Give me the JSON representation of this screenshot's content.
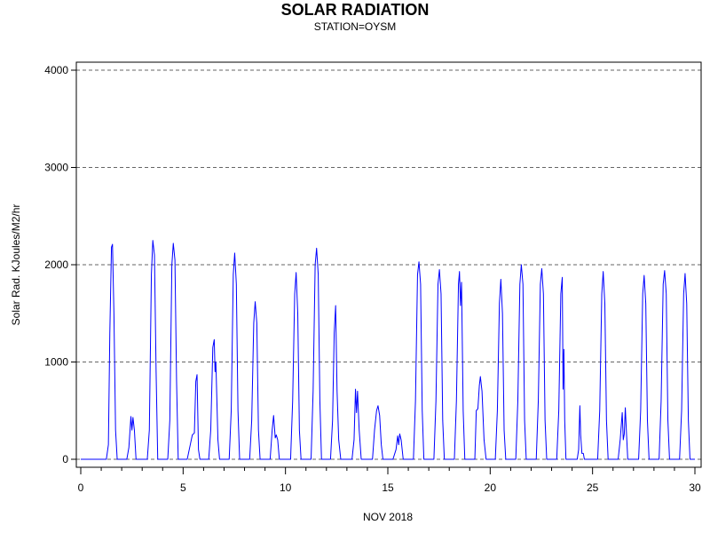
{
  "chart_data": {
    "type": "line",
    "title": "SOLAR RADIATION",
    "subtitle": "STATION=OYSM",
    "xlabel": "NOV 2018",
    "ylabel": "Solar Rad. KJoules/M2/hr",
    "xlim": [
      0,
      30
    ],
    "ylim": [
      0,
      4000
    ],
    "x_ticks": [
      0,
      5,
      10,
      15,
      20,
      25,
      30
    ],
    "y_ticks": [
      0,
      1000,
      2000,
      3000,
      4000
    ],
    "grid": "horizontal dashed",
    "line_color": "#0000ff",
    "series": [
      {
        "values": [
          [
            0,
            0
          ],
          [
            1.0,
            0
          ],
          [
            1.25,
            0
          ],
          [
            1.35,
            150
          ],
          [
            1.42,
            1300
          ],
          [
            1.5,
            2180
          ],
          [
            1.55,
            2210
          ],
          [
            1.62,
            1500
          ],
          [
            1.7,
            300
          ],
          [
            1.78,
            0
          ],
          [
            2.25,
            0
          ],
          [
            2.35,
            120
          ],
          [
            2.45,
            440
          ],
          [
            2.5,
            300
          ],
          [
            2.55,
            430
          ],
          [
            2.62,
            300
          ],
          [
            2.7,
            0
          ],
          [
            3.25,
            0
          ],
          [
            3.35,
            300
          ],
          [
            3.45,
            1900
          ],
          [
            3.52,
            2250
          ],
          [
            3.6,
            2100
          ],
          [
            3.68,
            900
          ],
          [
            3.76,
            0
          ],
          [
            4.25,
            0
          ],
          [
            4.35,
            400
          ],
          [
            4.45,
            2000
          ],
          [
            4.52,
            2220
          ],
          [
            4.6,
            2050
          ],
          [
            4.68,
            800
          ],
          [
            4.76,
            0
          ],
          [
            5.2,
            0
          ],
          [
            5.35,
            150
          ],
          [
            5.45,
            250
          ],
          [
            5.55,
            270
          ],
          [
            5.62,
            800
          ],
          [
            5.68,
            870
          ],
          [
            5.75,
            100
          ],
          [
            5.82,
            0
          ],
          [
            6.25,
            0
          ],
          [
            6.35,
            300
          ],
          [
            6.45,
            1150
          ],
          [
            6.52,
            1230
          ],
          [
            6.56,
            900
          ],
          [
            6.6,
            1000
          ],
          [
            6.7,
            200
          ],
          [
            6.78,
            0
          ],
          [
            7.25,
            0
          ],
          [
            7.35,
            500
          ],
          [
            7.45,
            1900
          ],
          [
            7.52,
            2120
          ],
          [
            7.6,
            1800
          ],
          [
            7.68,
            500
          ],
          [
            7.76,
            0
          ],
          [
            8.25,
            0
          ],
          [
            8.35,
            400
          ],
          [
            8.45,
            1400
          ],
          [
            8.52,
            1620
          ],
          [
            8.6,
            1400
          ],
          [
            8.68,
            300
          ],
          [
            8.76,
            0
          ],
          [
            9.25,
            0
          ],
          [
            9.35,
            300
          ],
          [
            9.42,
            450
          ],
          [
            9.5,
            220
          ],
          [
            9.55,
            250
          ],
          [
            9.62,
            200
          ],
          [
            9.7,
            0
          ],
          [
            10.25,
            0
          ],
          [
            10.35,
            600
          ],
          [
            10.45,
            1700
          ],
          [
            10.52,
            1920
          ],
          [
            10.6,
            1500
          ],
          [
            10.68,
            300
          ],
          [
            10.76,
            0
          ],
          [
            11.25,
            0
          ],
          [
            11.35,
            700
          ],
          [
            11.45,
            2000
          ],
          [
            11.52,
            2170
          ],
          [
            11.6,
            1900
          ],
          [
            11.68,
            600
          ],
          [
            11.76,
            0
          ],
          [
            12.2,
            0
          ],
          [
            12.3,
            400
          ],
          [
            12.38,
            1300
          ],
          [
            12.45,
            1580
          ],
          [
            12.52,
            700
          ],
          [
            12.6,
            200
          ],
          [
            12.7,
            0
          ],
          [
            13.25,
            0
          ],
          [
            13.35,
            200
          ],
          [
            13.42,
            720
          ],
          [
            13.47,
            480
          ],
          [
            13.52,
            700
          ],
          [
            13.6,
            300
          ],
          [
            13.7,
            0
          ],
          [
            14.25,
            0
          ],
          [
            14.35,
            300
          ],
          [
            14.45,
            500
          ],
          [
            14.52,
            550
          ],
          [
            14.6,
            450
          ],
          [
            14.68,
            150
          ],
          [
            14.76,
            0
          ],
          [
            15.25,
            0
          ],
          [
            15.4,
            100
          ],
          [
            15.48,
            240
          ],
          [
            15.53,
            150
          ],
          [
            15.58,
            260
          ],
          [
            15.65,
            200
          ],
          [
            15.75,
            0
          ],
          [
            16.25,
            0
          ],
          [
            16.35,
            600
          ],
          [
            16.45,
            1900
          ],
          [
            16.52,
            2030
          ],
          [
            16.6,
            1800
          ],
          [
            16.68,
            500
          ],
          [
            16.76,
            0
          ],
          [
            17.25,
            0
          ],
          [
            17.35,
            600
          ],
          [
            17.45,
            1800
          ],
          [
            17.52,
            1950
          ],
          [
            17.6,
            1700
          ],
          [
            17.68,
            400
          ],
          [
            17.76,
            0
          ],
          [
            18.25,
            0
          ],
          [
            18.35,
            600
          ],
          [
            18.45,
            1800
          ],
          [
            18.5,
            1930
          ],
          [
            18.55,
            1580
          ],
          [
            18.6,
            1820
          ],
          [
            18.68,
            500
          ],
          [
            18.76,
            0
          ],
          [
            19.25,
            0
          ],
          [
            19.32,
            500
          ],
          [
            19.4,
            520
          ],
          [
            19.47,
            760
          ],
          [
            19.52,
            850
          ],
          [
            19.6,
            700
          ],
          [
            19.7,
            200
          ],
          [
            19.8,
            0
          ],
          [
            20.25,
            0
          ],
          [
            20.35,
            500
          ],
          [
            20.45,
            1600
          ],
          [
            20.52,
            1850
          ],
          [
            20.6,
            1500
          ],
          [
            20.68,
            300
          ],
          [
            20.76,
            0
          ],
          [
            21.25,
            0
          ],
          [
            21.35,
            600
          ],
          [
            21.45,
            1800
          ],
          [
            21.52,
            2000
          ],
          [
            21.6,
            1800
          ],
          [
            21.68,
            400
          ],
          [
            21.76,
            0
          ],
          [
            22.25,
            0
          ],
          [
            22.35,
            600
          ],
          [
            22.45,
            1800
          ],
          [
            22.52,
            1960
          ],
          [
            22.6,
            1700
          ],
          [
            22.68,
            400
          ],
          [
            22.76,
            0
          ],
          [
            23.25,
            0
          ],
          [
            23.35,
            500
          ],
          [
            23.45,
            1700
          ],
          [
            23.52,
            1870
          ],
          [
            23.56,
            720
          ],
          [
            23.6,
            1130
          ],
          [
            23.64,
            400
          ],
          [
            23.7,
            0
          ],
          [
            24.25,
            0
          ],
          [
            24.32,
            100
          ],
          [
            24.38,
            550
          ],
          [
            24.42,
            250
          ],
          [
            24.48,
            60
          ],
          [
            24.55,
            60
          ],
          [
            24.6,
            0
          ],
          [
            25.25,
            0
          ],
          [
            25.35,
            500
          ],
          [
            25.45,
            1700
          ],
          [
            25.52,
            1930
          ],
          [
            25.6,
            1600
          ],
          [
            25.68,
            400
          ],
          [
            25.76,
            0
          ],
          [
            26.25,
            0
          ],
          [
            26.35,
            200
          ],
          [
            26.45,
            480
          ],
          [
            26.5,
            200
          ],
          [
            26.55,
            260
          ],
          [
            26.6,
            530
          ],
          [
            26.65,
            300
          ],
          [
            26.72,
            0
          ],
          [
            27.25,
            0
          ],
          [
            27.35,
            500
          ],
          [
            27.45,
            1700
          ],
          [
            27.52,
            1890
          ],
          [
            27.6,
            1600
          ],
          [
            27.68,
            400
          ],
          [
            27.76,
            0
          ],
          [
            28.25,
            0
          ],
          [
            28.35,
            600
          ],
          [
            28.45,
            1800
          ],
          [
            28.52,
            1940
          ],
          [
            28.6,
            1700
          ],
          [
            28.68,
            400
          ],
          [
            28.76,
            0
          ],
          [
            29.25,
            0
          ],
          [
            29.35,
            500
          ],
          [
            29.45,
            1700
          ],
          [
            29.52,
            1910
          ],
          [
            29.6,
            1600
          ],
          [
            29.68,
            400
          ],
          [
            29.76,
            0
          ],
          [
            30,
            0
          ]
        ]
      }
    ]
  }
}
